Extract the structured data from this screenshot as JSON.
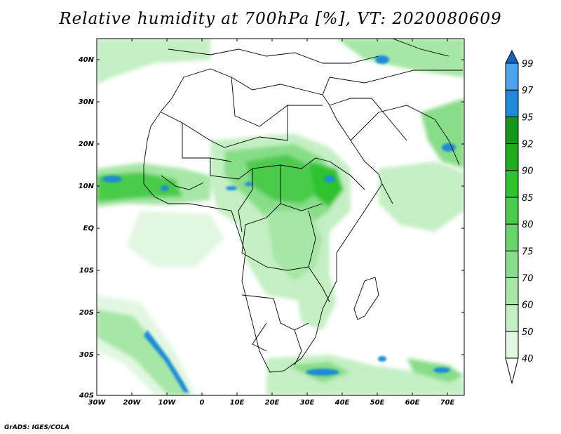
{
  "title": "Relative humidity at 700hPa [%], VT: 2020080609",
  "credit": "GrADS: IGES/COLA",
  "lat_labels": [
    "40N",
    "30N",
    "20N",
    "10N",
    "EQ",
    "10S",
    "20S",
    "30S",
    "40S"
  ],
  "lon_labels": [
    "30W",
    "20W",
    "10W",
    "0",
    "10E",
    "20E",
    "30E",
    "40E",
    "50E",
    "60E",
    "70E"
  ],
  "colorbar": {
    "levels": [
      "40",
      "50",
      "60",
      "70",
      "75",
      "80",
      "85",
      "90",
      "92",
      "95",
      "97",
      "99"
    ],
    "colors": [
      "#ffffff",
      "#e2f7e2",
      "#c4efc4",
      "#a6e6a6",
      "#88dd88",
      "#6ad46a",
      "#4ccb4c",
      "#2ec22e",
      "#1fad1f",
      "#15981a",
      "#1f8bd6",
      "#4da3ec",
      "#1565c0"
    ]
  }
}
